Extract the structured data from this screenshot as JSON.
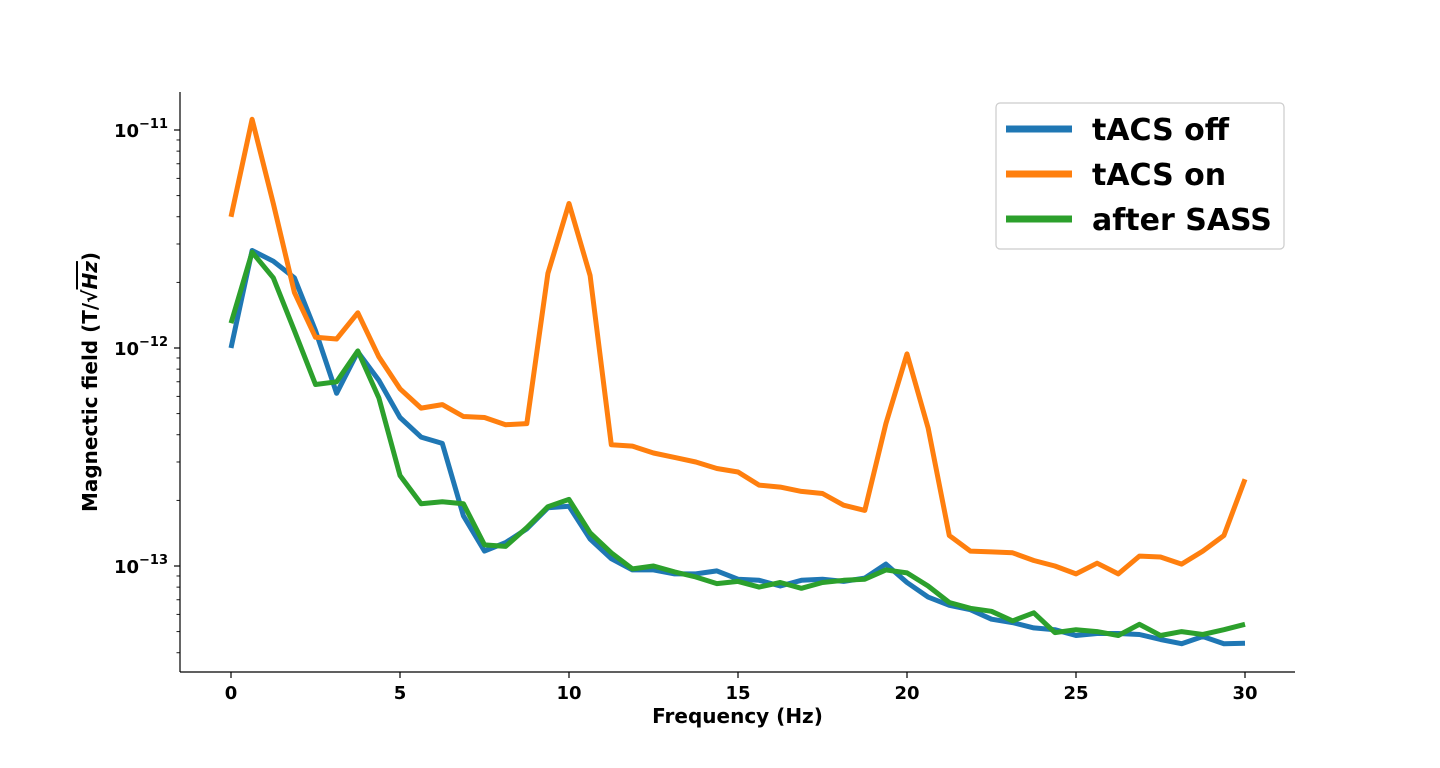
{
  "chart_data": {
    "type": "line",
    "xlabel": "Frequency (Hz)",
    "ylabel_prefix": "Magnectic field (T/√",
    "ylabel_radicand": "Hz",
    "ylabel_suffix": ")",
    "xlim": [
      -1.5,
      31.5
    ],
    "ylim": [
      3.3e-14,
      1.5e-11
    ],
    "yscale": "log",
    "x_ticks": [
      0,
      5,
      10,
      15,
      20,
      25,
      30
    ],
    "x_tick_labels": [
      "0",
      "5",
      "10",
      "15",
      "20",
      "25",
      "30"
    ],
    "y_ticks": [
      1e-11,
      1e-12,
      1e-13
    ],
    "y_tick_labels": [
      {
        "base": "10",
        "exp": "−11"
      },
      {
        "base": "10",
        "exp": "−12"
      },
      {
        "base": "10",
        "exp": "−13"
      }
    ],
    "grid": false,
    "legend_position": "top-right",
    "x": [
      0,
      0.625,
      1.25,
      1.875,
      2.5,
      3.125,
      3.75,
      4.375,
      5,
      5.625,
      6.25,
      6.875,
      7.5,
      8.125,
      8.75,
      9.375,
      10,
      10.625,
      11.25,
      11.875,
      12.5,
      13.125,
      13.75,
      14.375,
      15,
      15.625,
      16.25,
      16.875,
      17.5,
      18.125,
      18.75,
      19.375,
      20,
      20.625,
      21.25,
      21.875,
      22.5,
      23.125,
      23.75,
      24.375,
      25,
      25.625,
      26.25,
      26.875,
      27.5,
      28.125,
      28.75,
      29.375,
      30
    ],
    "series": [
      {
        "name": "tACS off",
        "color": "#1f77b4",
        "values": [
          1e-12,
          2.8e-12,
          2.5e-12,
          2.1e-12,
          1.2e-12,
          6.2e-13,
          9.6e-13,
          7.1e-13,
          4.8e-13,
          3.9e-13,
          3.65e-13,
          1.7e-13,
          1.17e-13,
          1.28e-13,
          1.48e-13,
          1.85e-13,
          1.88e-13,
          1.33e-13,
          1.08e-13,
          9.6e-14,
          9.6e-14,
          9.2e-14,
          9.2e-14,
          9.5e-14,
          8.7e-14,
          8.6e-14,
          8.1e-14,
          8.6e-14,
          8.7e-14,
          8.5e-14,
          8.8e-14,
          1.02e-13,
          8.4e-14,
          7.2e-14,
          6.6e-14,
          6.3e-14,
          5.7e-14,
          5.5e-14,
          5.2e-14,
          5.1e-14,
          4.8e-14,
          4.9e-14,
          4.9e-14,
          4.85e-14,
          4.6e-14,
          4.4e-14,
          4.75e-14,
          4.4e-14,
          4.42e-14
        ]
      },
      {
        "name": "tACS on",
        "color": "#ff7f0e",
        "values": [
          4e-12,
          1.12e-11,
          4.6e-12,
          1.8e-12,
          1.12e-12,
          1.1e-12,
          1.45e-12,
          9.1e-13,
          6.5e-13,
          5.3e-13,
          5.5e-13,
          4.85e-13,
          4.8e-13,
          4.45e-13,
          4.5e-13,
          2.2e-12,
          4.6e-12,
          2.15e-12,
          3.6e-13,
          3.55e-13,
          3.3e-13,
          3.15e-13,
          3e-13,
          2.8e-13,
          2.7e-13,
          2.35e-13,
          2.3e-13,
          2.2e-13,
          2.15e-13,
          1.9e-13,
          1.8e-13,
          4.5e-13,
          9.4e-13,
          4.3e-13,
          1.38e-13,
          1.17e-13,
          1.16e-13,
          1.15e-13,
          1.06e-13,
          1e-13,
          9.2e-14,
          1.03e-13,
          9.2e-14,
          1.11e-13,
          1.1e-13,
          1.02e-13,
          1.17e-13,
          1.38e-13,
          2.5e-13
        ]
      },
      {
        "name": "after SASS",
        "color": "#2ca02c",
        "values": [
          1.3e-12,
          2.75e-12,
          2.1e-12,
          1.2e-12,
          6.8e-13,
          7e-13,
          9.7e-13,
          5.9e-13,
          2.6e-13,
          1.93e-13,
          1.97e-13,
          1.93e-13,
          1.25e-13,
          1.23e-13,
          1.5e-13,
          1.87e-13,
          2.02e-13,
          1.42e-13,
          1.15e-13,
          9.7e-14,
          1e-13,
          9.4e-14,
          8.9e-14,
          8.3e-14,
          8.5e-14,
          8e-14,
          8.4e-14,
          7.9e-14,
          8.4e-14,
          8.6e-14,
          8.7e-14,
          9.6e-14,
          9.3e-14,
          8.1e-14,
          6.8e-14,
          6.4e-14,
          6.2e-14,
          5.6e-14,
          6.1e-14,
          4.95e-14,
          5.1e-14,
          5e-14,
          4.8e-14,
          5.4e-14,
          4.8e-14,
          5e-14,
          4.85e-14,
          5.1e-14,
          5.4e-14
        ]
      }
    ]
  }
}
